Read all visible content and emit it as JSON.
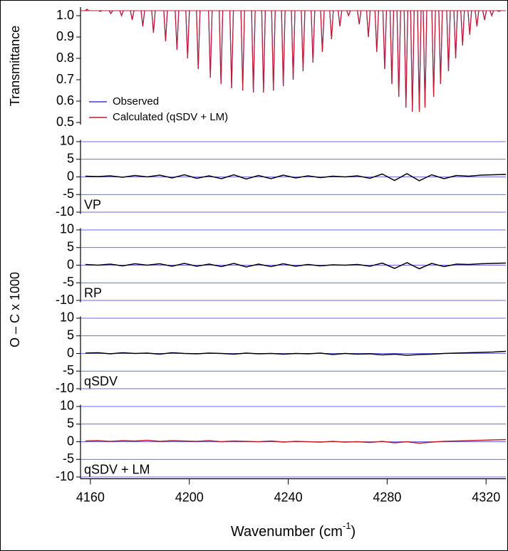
{
  "chart_data": [
    {
      "type": "spectrum",
      "ylabel": "Transmittance",
      "xlim": [
        4156,
        4328
      ],
      "ylim": [
        0.49,
        1.04
      ],
      "yticks": [
        0.5,
        0.6,
        0.7,
        0.8,
        0.9,
        {
          "value": 1,
          "label": "1.0"
        }
      ],
      "x": [
        4158.6,
        4164.0,
        4168.3,
        4172.6,
        4176.9,
        4181.2,
        4185.5,
        4190.4,
        4195.0,
        4199.3,
        4203.6,
        4208.5,
        4212.8,
        4217.1,
        4221.6,
        4225.9,
        4230.0,
        4234.0,
        4238.0,
        4242.0,
        4246.0,
        4250.0,
        4253.8,
        4257.5,
        4260.9,
        4264.4,
        4268.7,
        4272.4,
        4275.8,
        4279.0,
        4281.9,
        4284.7,
        4287.6,
        4290.2,
        4293.0,
        4295.3,
        4298.8,
        4301.6,
        4304.8,
        4307.7,
        4310.5,
        4313.4,
        4316.3,
        4319.4,
        4322.3,
        4325.2
      ],
      "series": [
        {
          "name": "Observed",
          "color": "#3a3adb",
          "values": [
            1.03,
            1.02,
            1.01,
            1.0,
            0.98,
            0.95,
            0.92,
            0.88,
            0.84,
            0.8,
            0.75,
            0.71,
            0.68,
            0.66,
            0.65,
            0.64,
            0.64,
            0.65,
            0.67,
            0.7,
            0.74,
            0.78,
            0.83,
            0.89,
            0.95,
            1.0,
            0.96,
            0.9,
            0.83,
            0.75,
            0.68,
            0.62,
            0.57,
            0.55,
            0.55,
            0.57,
            0.62,
            0.68,
            0.74,
            0.8,
            0.86,
            0.91,
            0.95,
            0.98,
            1.0,
            1.02
          ]
        },
        {
          "name": "Calculated (qSDV + LM)",
          "color": "#c41a30",
          "values": [
            1.03,
            1.02,
            1.01,
            1.0,
            0.98,
            0.95,
            0.92,
            0.88,
            0.84,
            0.8,
            0.75,
            0.71,
            0.68,
            0.66,
            0.65,
            0.64,
            0.64,
            0.65,
            0.67,
            0.7,
            0.74,
            0.78,
            0.83,
            0.89,
            0.95,
            1.0,
            0.96,
            0.9,
            0.83,
            0.75,
            0.68,
            0.62,
            0.57,
            0.55,
            0.55,
            0.57,
            0.62,
            0.68,
            0.74,
            0.8,
            0.86,
            0.91,
            0.95,
            0.98,
            1.0,
            1.02
          ]
        }
      ]
    },
    {
      "type": "line",
      "label": "VP",
      "ylabel": "O – C x 1000",
      "xlim": [
        4156,
        4328
      ],
      "ylim": [
        -10.5,
        10.5
      ],
      "yticks": [
        10,
        5,
        0,
        -5,
        -10
      ],
      "grid": true,
      "color": "#000000",
      "x": [
        4158,
        4163,
        4168,
        4173,
        4178,
        4183,
        4188,
        4193,
        4198,
        4203,
        4208,
        4213,
        4218,
        4223,
        4228,
        4233,
        4238,
        4243,
        4248,
        4253,
        4258,
        4263,
        4268,
        4273,
        4278,
        4283,
        4288,
        4293,
        4298,
        4303,
        4308,
        4313,
        4318,
        4323,
        4328
      ],
      "values": [
        0.2,
        0.1,
        0.3,
        -0.1,
        0.4,
        0.0,
        0.5,
        -0.3,
        0.6,
        -0.4,
        0.3,
        -0.5,
        0.6,
        -0.6,
        0.4,
        -0.5,
        0.5,
        -0.3,
        0.3,
        -0.2,
        0.2,
        0.0,
        0.3,
        -0.4,
        0.8,
        -1.0,
        0.9,
        -1.1,
        0.6,
        -0.5,
        0.4,
        0.2,
        0.5,
        0.6,
        0.7
      ]
    },
    {
      "type": "line",
      "label": "RP",
      "xlim": [
        4156,
        4328
      ],
      "ylim": [
        -10.5,
        10.5
      ],
      "yticks": [
        10,
        5,
        0,
        -5,
        -10
      ],
      "grid": true,
      "color": "#000000",
      "x": [
        4158,
        4163,
        4168,
        4173,
        4178,
        4183,
        4188,
        4193,
        4198,
        4203,
        4208,
        4213,
        4218,
        4223,
        4228,
        4233,
        4238,
        4243,
        4248,
        4253,
        4258,
        4263,
        4268,
        4273,
        4278,
        4283,
        4288,
        4293,
        4298,
        4303,
        4308,
        4313,
        4318,
        4323,
        4328
      ],
      "values": [
        0.2,
        0.0,
        0.3,
        -0.2,
        0.4,
        0.0,
        0.4,
        -0.3,
        0.5,
        -0.3,
        0.3,
        -0.4,
        0.5,
        -0.5,
        0.3,
        -0.4,
        0.4,
        -0.3,
        0.2,
        -0.2,
        0.1,
        0.0,
        0.2,
        -0.3,
        0.6,
        -0.9,
        0.7,
        -1.0,
        0.5,
        -0.4,
        0.3,
        0.2,
        0.4,
        0.5,
        0.6
      ]
    },
    {
      "type": "line",
      "label": "qSDV",
      "xlim": [
        4156,
        4328
      ],
      "ylim": [
        -10.5,
        10.5
      ],
      "yticks": [
        10,
        5,
        0,
        -5,
        -10
      ],
      "grid": true,
      "color": "#000000",
      "x": [
        4158,
        4163,
        4168,
        4173,
        4178,
        4183,
        4188,
        4193,
        4198,
        4203,
        4208,
        4213,
        4218,
        4223,
        4228,
        4233,
        4238,
        4243,
        4248,
        4253,
        4258,
        4263,
        4268,
        4273,
        4278,
        4283,
        4288,
        4293,
        4298,
        4303,
        4308,
        4313,
        4318,
        4323,
        4328
      ],
      "values": [
        0.1,
        0.2,
        -0.1,
        0.2,
        0.0,
        0.1,
        -0.2,
        0.2,
        0.0,
        -0.1,
        0.1,
        0.0,
        -0.2,
        0.1,
        -0.1,
        0.0,
        -0.2,
        0.0,
        -0.1,
        0.1,
        -0.3,
        0.0,
        -0.2,
        -0.1,
        -0.4,
        -0.2,
        -0.5,
        -0.3,
        -0.2,
        0.0,
        0.1,
        0.2,
        0.3,
        0.4,
        0.6
      ]
    },
    {
      "type": "line",
      "label": "qSDV + LM",
      "xlim": [
        4156,
        4328
      ],
      "ylim": [
        -10.5,
        10.5
      ],
      "yticks": [
        10,
        5,
        0,
        -5,
        -10
      ],
      "grid": true,
      "color": "#c41a1a",
      "xticks": [
        4160,
        4200,
        4240,
        4280,
        4320
      ],
      "xlabel": "Wavenumber (cm",
      "xlabel_sup": "-1",
      "xlabel_end": ")",
      "x": [
        4158,
        4163,
        4168,
        4173,
        4178,
        4183,
        4188,
        4193,
        4198,
        4203,
        4208,
        4213,
        4218,
        4223,
        4228,
        4233,
        4238,
        4243,
        4248,
        4253,
        4258,
        4263,
        4268,
        4273,
        4278,
        4283,
        4288,
        4293,
        4298,
        4303,
        4308,
        4313,
        4318,
        4323,
        4328
      ],
      "values": [
        0.2,
        0.3,
        0.1,
        0.3,
        0.2,
        0.4,
        0.1,
        0.3,
        0.2,
        0.1,
        0.3,
        0.0,
        0.2,
        0.1,
        0.0,
        0.2,
        -0.1,
        0.1,
        0.0,
        -0.1,
        0.1,
        -0.1,
        0.0,
        -0.2,
        0.1,
        -0.3,
        0.0,
        -0.4,
        -0.1,
        0.1,
        0.2,
        0.3,
        0.4,
        0.5,
        0.6
      ]
    }
  ]
}
